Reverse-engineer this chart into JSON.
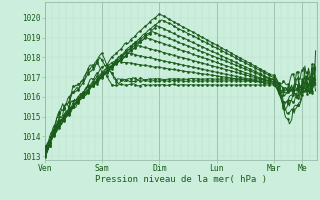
{
  "xlabel": "Pression niveau de la mer( hPa )",
  "bg_color": "#cceedd",
  "grid_color_minor": "#bbddcc",
  "grid_color_major": "#99bbaa",
  "line_color": "#1a5c1a",
  "ylim": [
    1012.8,
    1020.8
  ],
  "yticks": [
    1013,
    1014,
    1015,
    1016,
    1017,
    1018,
    1019,
    1020
  ],
  "day_labels": [
    "Ven",
    "Sam",
    "Dim",
    "Lun",
    "Mar",
    "Me"
  ],
  "day_positions": [
    0,
    48,
    96,
    144,
    192,
    216
  ],
  "xlim": [
    0,
    228
  ],
  "N": 228
}
